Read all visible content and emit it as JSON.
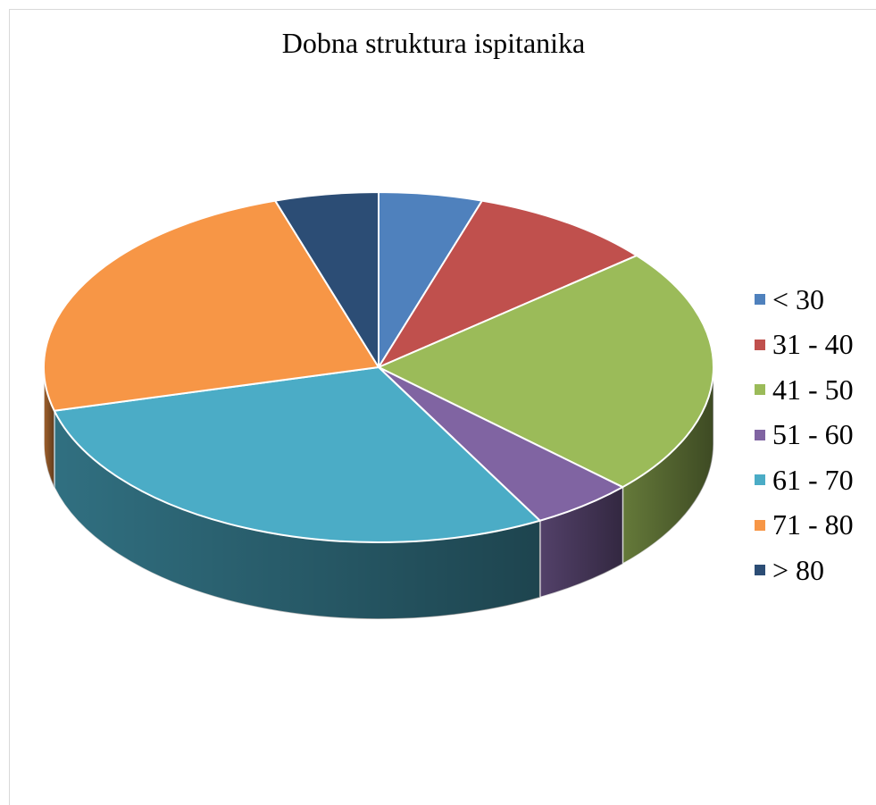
{
  "chart_data": {
    "type": "pie",
    "title": "Dobna struktura ispitanika",
    "categories": [
      "< 30",
      "31 - 40",
      "41 - 50",
      "51 - 60",
      "61 - 70",
      "71 - 80",
      "> 80"
    ],
    "values": [
      5,
      9,
      23,
      5,
      29,
      24,
      5
    ],
    "colors": [
      "#4F81BD",
      "#C0504D",
      "#9BBB59",
      "#8064A2",
      "#4BACC6",
      "#F79646",
      "#2C4D75"
    ],
    "legend_position": "right",
    "style": "3d"
  }
}
